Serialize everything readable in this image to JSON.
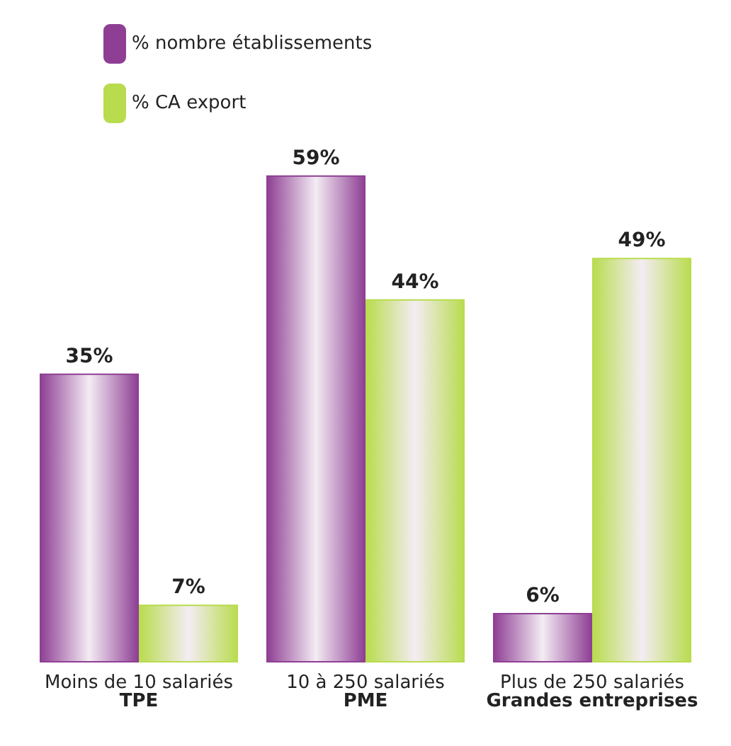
{
  "chart_data": {
    "type": "bar",
    "categories": [
      "Moins de 10 salariés\nTPE",
      "10 à 250 salariés\nPME",
      "Plus de 250 salariés\nGrandes entreprises"
    ],
    "series": [
      {
        "name": "% nombre établissements",
        "color": "#8e3f94",
        "values": [
          35,
          59,
          6
        ],
        "value_labels": [
          "35%",
          "59%",
          "6%"
        ]
      },
      {
        "name": "% CA export",
        "color": "#b9dc4e",
        "values": [
          7,
          44,
          49
        ],
        "value_labels": [
          "7%",
          "44%",
          "49%"
        ]
      }
    ],
    "legend": "top left"
  }
}
